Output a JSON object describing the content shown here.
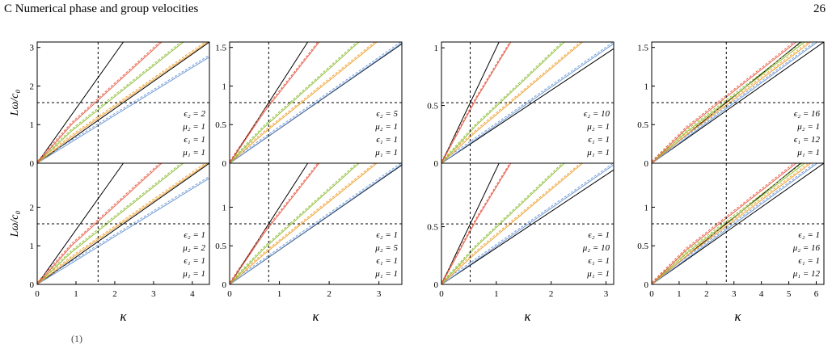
{
  "header": {
    "section": "C   Numerical phase and group velocities",
    "page_number": "26"
  },
  "x_axis_label": "κ",
  "y_axis_label": "Lω/c₀",
  "footer_fragment": "(1)",
  "colors": {
    "red": "#e8604a",
    "green": "#8fbf3a",
    "orange": "#f0a030",
    "blue": "#6f9ad6",
    "black": "#000000"
  },
  "chart_data": [
    {
      "type": "line",
      "row": "top",
      "xlim": [
        0,
        4.44
      ],
      "ylim": [
        0,
        3.14
      ],
      "xticks": [],
      "yticks": [
        0,
        1,
        2,
        3
      ],
      "ytick_labels": [
        "0",
        "1",
        "2",
        "3"
      ],
      "crosshair": {
        "x": 1.57,
        "y": 1.57
      },
      "legend": [
        "ϵ₂ = 2",
        "μ₂ = 1",
        "ϵ₁ = 1",
        "μ₁ = 1"
      ],
      "light_lines": [
        1.414,
        0.707
      ],
      "band_slopes": [
        0.92,
        0.8,
        0.7,
        0.62
      ]
    },
    {
      "type": "line",
      "row": "top",
      "xlim": [
        0,
        3.46
      ],
      "ylim": [
        0,
        1.57
      ],
      "xticks": [],
      "yticks": [
        0,
        0.5,
        1,
        1.5
      ],
      "ytick_labels": [
        "0",
        "0.5",
        "1",
        "1.5"
      ],
      "crosshair": {
        "x": 0.785,
        "y": 0.785
      },
      "legend": [
        "ϵ₂ = 5",
        "μ₂ = 1",
        "ϵ₁ = 1",
        "μ₁ = 1"
      ],
      "light_lines": [
        1.0,
        0.447
      ],
      "band_slopes": [
        0.82,
        0.58,
        0.52,
        0.45
      ]
    },
    {
      "type": "line",
      "row": "top",
      "xlim": [
        0,
        3.14
      ],
      "ylim": [
        0,
        1.05
      ],
      "xticks": [],
      "yticks": [
        0,
        0.5,
        1
      ],
      "ytick_labels": [
        "0",
        "0.5",
        "1"
      ],
      "crosshair": {
        "x": 0.524,
        "y": 0.524
      },
      "legend": [
        "ϵ₂ = 10",
        "μ₂ = 1",
        "ϵ₁ = 1",
        "μ₁ = 1"
      ],
      "light_lines": [
        1.0,
        0.316
      ],
      "band_slopes": [
        0.78,
        0.45,
        0.4,
        0.33
      ]
    },
    {
      "type": "line",
      "row": "top",
      "xlim": [
        0,
        6.28
      ],
      "ylim": [
        0,
        1.57
      ],
      "xticks": [],
      "yticks": [
        0,
        0.5,
        1,
        1.5
      ],
      "ytick_labels": [
        "0",
        "0.5",
        "1",
        "1.5"
      ],
      "crosshair": {
        "x": 2.72,
        "y": 0.785
      },
      "legend": [
        "ϵ₂ = 16",
        "μ₂ = 1",
        "ϵ₁ = 12",
        "μ₁ = 1"
      ],
      "light_lines": [
        0.289,
        0.25
      ],
      "band_slopes": [
        0.28,
        0.27,
        0.265,
        0.26
      ]
    },
    {
      "type": "line",
      "row": "bottom",
      "xlim": [
        0,
        4.44
      ],
      "ylim": [
        0,
        3.14
      ],
      "xticks": [
        0,
        1,
        2,
        3,
        4
      ],
      "xtick_labels": [
        "0",
        "1",
        "2",
        "3",
        "4"
      ],
      "yticks": [
        0,
        1,
        2
      ],
      "ytick_labels": [
        "0",
        "1",
        "2"
      ],
      "crosshair": {
        "x": 1.57,
        "y": 1.57
      },
      "legend": [
        "ϵ₂ = 1",
        "μ₂ = 2",
        "ϵ₁ = 1",
        "μ₁ = 1"
      ],
      "light_lines": [
        1.414,
        0.707
      ],
      "band_slopes": [
        0.92,
        0.8,
        0.7,
        0.62
      ]
    },
    {
      "type": "line",
      "row": "bottom",
      "xlim": [
        0,
        3.46
      ],
      "ylim": [
        0,
        1.57
      ],
      "xticks": [
        0,
        1,
        2,
        3
      ],
      "xtick_labels": [
        "0",
        "1",
        "2",
        "3"
      ],
      "yticks": [
        0,
        0.5,
        1
      ],
      "ytick_labels": [
        "0",
        "0.5",
        "1"
      ],
      "crosshair": {
        "x": 0.785,
        "y": 0.785
      },
      "legend": [
        "ϵ₂ = 1",
        "μ₂ = 5",
        "ϵ₁ = 1",
        "μ₁ = 1"
      ],
      "light_lines": [
        1.0,
        0.447
      ],
      "band_slopes": [
        0.82,
        0.58,
        0.52,
        0.45
      ]
    },
    {
      "type": "line",
      "row": "bottom",
      "xlim": [
        0,
        3.14
      ],
      "ylim": [
        0,
        1.05
      ],
      "xticks": [
        0,
        1,
        2,
        3
      ],
      "xtick_labels": [
        "0",
        "1",
        "2",
        "3"
      ],
      "yticks": [
        0,
        0.5
      ],
      "ytick_labels": [
        "0",
        "0.5"
      ],
      "crosshair": {
        "x": 0.524,
        "y": 0.524
      },
      "legend": [
        "ϵ₂ = 1",
        "μ₂ = 10",
        "ϵ₁ = 1",
        "μ₁ = 1"
      ],
      "light_lines": [
        1.0,
        0.316
      ],
      "band_slopes": [
        0.78,
        0.45,
        0.4,
        0.33
      ]
    },
    {
      "type": "line",
      "row": "bottom",
      "xlim": [
        0,
        6.28
      ],
      "ylim": [
        0,
        1.57
      ],
      "xticks": [
        0,
        1,
        2,
        3,
        4,
        5,
        6
      ],
      "xtick_labels": [
        "0",
        "1",
        "2",
        "3",
        "4",
        "5",
        "6"
      ],
      "yticks": [
        0,
        0.5,
        1
      ],
      "ytick_labels": [
        "0",
        "0.5",
        "1"
      ],
      "crosshair": {
        "x": 2.72,
        "y": 0.785
      },
      "legend": [
        "ϵ₂ = 1",
        "μ₂ = 16",
        "ϵ₁ = 1",
        "μ₁ = 12"
      ],
      "light_lines": [
        0.289,
        0.25
      ],
      "band_slopes": [
        0.28,
        0.27,
        0.265,
        0.26
      ]
    }
  ]
}
